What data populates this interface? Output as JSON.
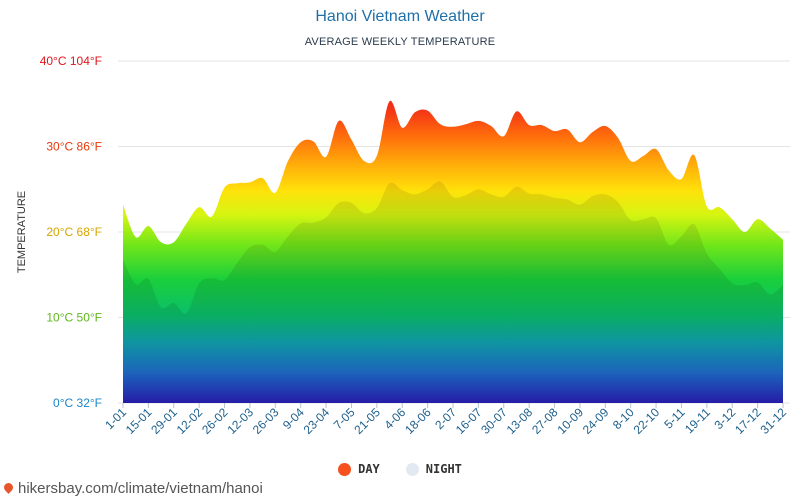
{
  "header": {
    "title": "Hanoi Vietnam Weather",
    "subtitle": "AVERAGE WEEKLY TEMPERATURE"
  },
  "footer": {
    "source": "hikersbay.com/climate/vietnam/hanoi"
  },
  "legend": {
    "day_label": "DAY",
    "night_label": "NIGHT",
    "day_color": "#f5501e",
    "night_color": "#e3e9f2"
  },
  "chart_data": {
    "type": "area",
    "title": "Hanoi Vietnam Weather",
    "subtitle": "AVERAGE WEEKLY TEMPERATURE",
    "ylabel": "TEMPERATURE",
    "ylim": [
      0,
      40
    ],
    "yticks": [
      {
        "value": 0,
        "label": "0°C 32°F",
        "color": "#1a86c9"
      },
      {
        "value": 10,
        "label": "10°C 50°F",
        "color": "#5fb81e"
      },
      {
        "value": 20,
        "label": "20°C 68°F",
        "color": "#d9a400"
      },
      {
        "value": 30,
        "label": "30°C 86°F",
        "color": "#e63b0c"
      },
      {
        "value": 40,
        "label": "40°C 104°F",
        "color": "#e0151c"
      }
    ],
    "x_tick_labels": [
      "1-01",
      "15-01",
      "29-01",
      "12-02",
      "26-02",
      "12-03",
      "26-03",
      "9-04",
      "23-04",
      "7-05",
      "21-05",
      "4-06",
      "18-06",
      "2-07",
      "16-07",
      "30-07",
      "13-08",
      "27-08",
      "10-09",
      "24-09",
      "8-10",
      "22-10",
      "5-11",
      "19-11",
      "3-12",
      "17-12",
      "31-12"
    ],
    "grid": true,
    "legend_position": "bottom",
    "series": [
      {
        "name": "DAY",
        "values": [
          23.2,
          19.4,
          20.7,
          18.8,
          18.8,
          21.0,
          22.9,
          21.8,
          25.2,
          25.7,
          25.8,
          26.3,
          24.6,
          28.3,
          30.5,
          30.6,
          28.8,
          33.0,
          30.8,
          28.3,
          28.9,
          35.3,
          32.2,
          34.0,
          34.2,
          32.6,
          32.3,
          32.6,
          33.0,
          32.4,
          31.2,
          34.1,
          32.5,
          32.5,
          31.8,
          32.0,
          30.5,
          31.7,
          32.4,
          31.0,
          28.3,
          28.9,
          29.7,
          27.2,
          26.2,
          29.0,
          23.0,
          22.9,
          21.5,
          20.0,
          21.5,
          20.4,
          19.1
        ]
      },
      {
        "name": "NIGHT",
        "values": [
          16.8,
          13.9,
          14.5,
          11.2,
          11.7,
          10.5,
          14.0,
          14.6,
          14.4,
          16.4,
          18.2,
          18.5,
          17.7,
          19.5,
          21.0,
          21.1,
          21.7,
          23.4,
          23.4,
          22.2,
          22.8,
          25.7,
          24.9,
          24.4,
          25.0,
          25.9,
          24.1,
          24.3,
          25.0,
          24.4,
          24.1,
          25.3,
          24.5,
          24.4,
          24.0,
          23.8,
          23.2,
          24.2,
          24.4,
          23.5,
          21.4,
          21.5,
          21.6,
          18.5,
          19.5,
          20.9,
          17.5,
          15.7,
          14.0,
          13.8,
          14.1,
          12.7,
          13.8
        ]
      }
    ]
  }
}
